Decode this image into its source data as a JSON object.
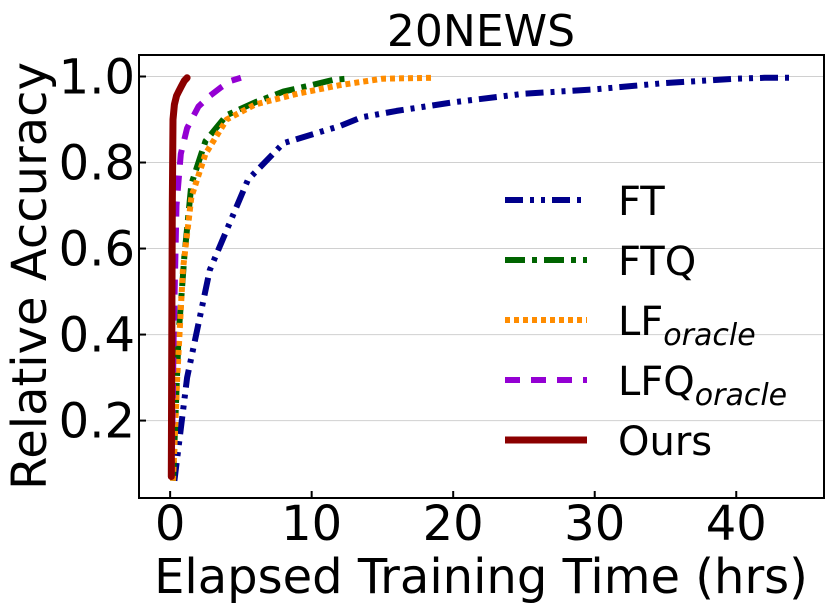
{
  "chart_data": {
    "type": "line",
    "title": "20NEWS",
    "xlabel": "Elapsed Training Time (hrs)",
    "ylabel": "Relative Accuracy",
    "xlim": [
      -2.2,
      46.2
    ],
    "ylim": [
      0.02,
      1.05
    ],
    "xticks": [
      0,
      10,
      20,
      30,
      40
    ],
    "yticks": [
      0.2,
      0.4,
      0.6,
      0.8,
      1.0
    ],
    "xtick_labels": [
      "0",
      "10",
      "20",
      "30",
      "40"
    ],
    "ytick_labels": [
      "0.2",
      "0.4",
      "0.6",
      "0.8",
      "1.0"
    ],
    "grid": "horizontal",
    "legend_position": "lower-right",
    "series": [
      {
        "name": "FT",
        "name_sub": "",
        "color": "#00008B",
        "style": "dashdotdot",
        "x": [
          0.3,
          1.2,
          2.8,
          5.5,
          8.0,
          10.5,
          12.0,
          13.5,
          16.0,
          20.0,
          25.0,
          30.0,
          35.0,
          40.0,
          42.0,
          44.0
        ],
        "y": [
          0.06,
          0.3,
          0.55,
          0.76,
          0.845,
          0.87,
          0.885,
          0.905,
          0.92,
          0.94,
          0.96,
          0.97,
          0.985,
          0.995,
          0.997,
          0.997
        ]
      },
      {
        "name": "FTQ",
        "name_sub": "",
        "color": "#006400",
        "style": "dashdot",
        "x": [
          0.2,
          0.6,
          1.0,
          1.5,
          2.5,
          4.0,
          6.0,
          8.0,
          10.0,
          11.5,
          12.5
        ],
        "y": [
          0.06,
          0.4,
          0.58,
          0.75,
          0.85,
          0.91,
          0.94,
          0.965,
          0.98,
          0.992,
          0.995
        ]
      },
      {
        "name": "LF",
        "name_sub": "oracle",
        "color": "#FF8C00",
        "style": "dotted",
        "x": [
          0.2,
          0.5,
          0.9,
          1.5,
          2.5,
          4.0,
          6.0,
          9.0,
          12.0,
          15.0,
          18.5
        ],
        "y": [
          0.06,
          0.3,
          0.55,
          0.72,
          0.82,
          0.9,
          0.935,
          0.96,
          0.98,
          0.995,
          0.997
        ]
      },
      {
        "name": "LFQ",
        "name_sub": "oracle",
        "color": "#9400D3",
        "style": "dashed",
        "x": [
          0.1,
          0.25,
          0.45,
          0.75,
          1.2,
          2.0,
          2.8,
          3.6,
          4.3,
          5.0
        ],
        "y": [
          0.07,
          0.4,
          0.7,
          0.82,
          0.88,
          0.93,
          0.955,
          0.975,
          0.99,
          0.997
        ]
      },
      {
        "name": "Ours",
        "name_sub": "",
        "color": "#8B0000",
        "style": "solid",
        "x": [
          0.08,
          0.12,
          0.15,
          0.2,
          0.3,
          0.45,
          0.6,
          0.8,
          1.0,
          1.2
        ],
        "y": [
          0.07,
          0.4,
          0.7,
          0.9,
          0.935,
          0.955,
          0.965,
          0.978,
          0.99,
          0.997
        ]
      }
    ]
  }
}
